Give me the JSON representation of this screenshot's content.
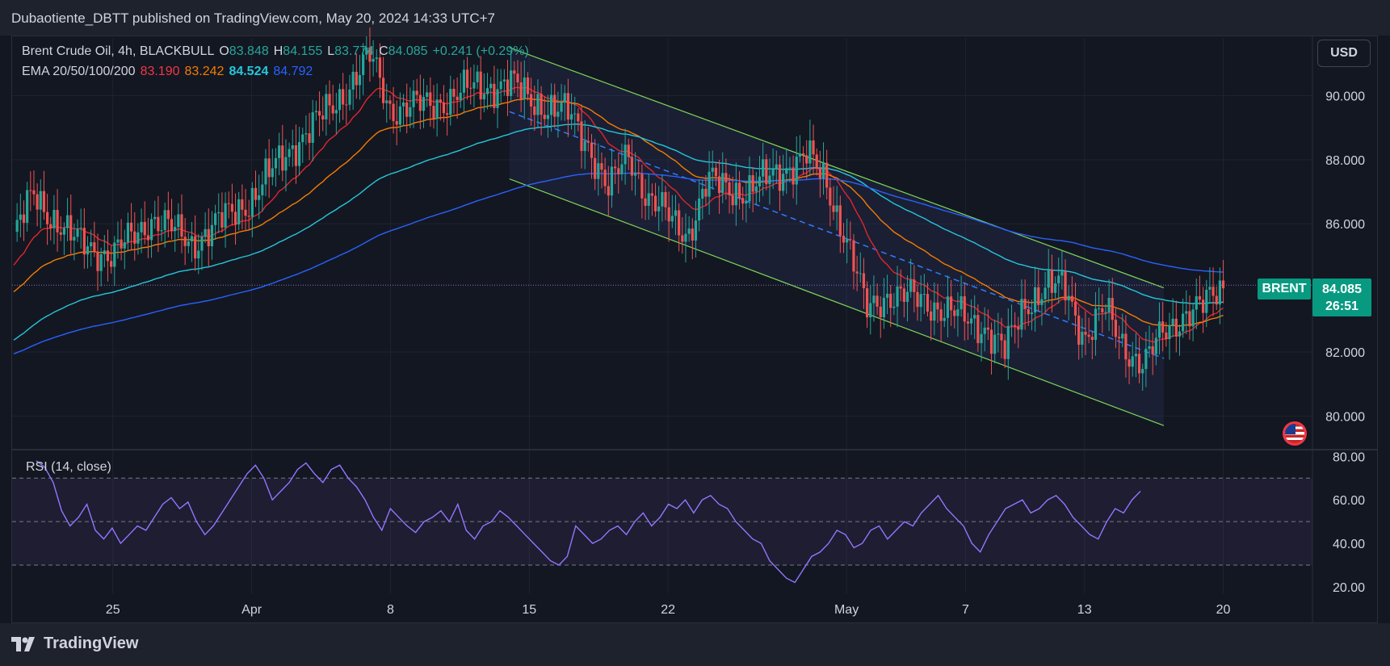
{
  "header": {
    "published_by": "Dubaotiente_DBTT published on TradingView.com, May 20, 2024 14:33 UTC+7"
  },
  "legend": {
    "symbol": "Brent Crude Oil, 4h, BLACKBULL",
    "open_label": "O",
    "open": "83.848",
    "high_label": "H",
    "high": "84.155",
    "low_label": "L",
    "low": "83.774",
    "close_label": "C",
    "close": "84.085",
    "change": "+0.241 (+0.29%)",
    "ema_label": "EMA 20/50/100/200",
    "ema_values": [
      "83.190",
      "83.242",
      "84.524",
      "84.792"
    ]
  },
  "currency_button": "USD",
  "last_price": {
    "symbol": "BRENT",
    "price": "84.085",
    "countdown": "26:51"
  },
  "rsi_label": "RSI (14, close)",
  "footer": {
    "brand": "TradingView"
  },
  "colors": {
    "up": "#26a69a",
    "down": "#ef5350",
    "ema20": "#e0262b",
    "ema50": "#f57c00",
    "ema100": "#26c6da",
    "ema200": "#2962ff",
    "channel": "#7ed957",
    "midline": "#2f7bff",
    "rsi": "#9575ff",
    "last": "#089981"
  },
  "chart_data": [
    {
      "type": "candlestick",
      "title": "Brent Crude Oil, 4h, BLACKBULL",
      "x_ticks": [
        "25",
        "Apr",
        "8",
        "15",
        "22",
        "May",
        "7",
        "13",
        "20"
      ],
      "y_ticks": [
        "90.000",
        "88.000",
        "86.000",
        "82.000",
        "80.000"
      ],
      "ylim": [
        79.0,
        91.8
      ],
      "key_points": [
        {
          "t": "Mar 20",
          "close": 85.6
        },
        {
          "t": "Mar 21",
          "close": 86.9
        },
        {
          "t": "Mar 23",
          "close": 85.5
        },
        {
          "t": "Mar 25",
          "close": 85.0
        },
        {
          "t": "Mar 27",
          "close": 86.2
        },
        {
          "t": "Mar 29",
          "close": 85.4
        },
        {
          "t": "Apr 1",
          "close": 86.8
        },
        {
          "t": "Apr 3",
          "close": 88.4
        },
        {
          "t": "Apr 5",
          "close": 89.6
        },
        {
          "t": "Apr 7",
          "close": 91.2
        },
        {
          "t": "Apr 8",
          "close": 89.6
        },
        {
          "t": "Apr 10",
          "close": 89.7
        },
        {
          "t": "Apr 12",
          "close": 90.2
        },
        {
          "t": "Apr 14",
          "close": 90.4
        },
        {
          "t": "Apr 15",
          "close": 89.9
        },
        {
          "t": "Apr 17",
          "close": 89.4
        },
        {
          "t": "Apr 18",
          "close": 88.5
        },
        {
          "t": "Apr 19",
          "close": 87.0
        },
        {
          "t": "Apr 20",
          "close": 88.2
        },
        {
          "t": "Apr 21",
          "close": 86.8
        },
        {
          "t": "Apr 22",
          "close": 86.2
        },
        {
          "t": "Apr 23",
          "close": 85.7
        },
        {
          "t": "Apr 24",
          "close": 87.3
        },
        {
          "t": "Apr 26",
          "close": 87.0
        },
        {
          "t": "Apr 28",
          "close": 87.8
        },
        {
          "t": "Apr 29",
          "close": 88.1
        },
        {
          "t": "Apr 30",
          "close": 87.3
        },
        {
          "t": "May 1",
          "close": 85.5
        },
        {
          "t": "May 2",
          "close": 83.3
        },
        {
          "t": "May 3",
          "close": 83.8
        },
        {
          "t": "May 5",
          "close": 83.6
        },
        {
          "t": "May 7",
          "close": 83.0
        },
        {
          "t": "May 8",
          "close": 82.8
        },
        {
          "t": "May 9",
          "close": 82.0
        },
        {
          "t": "May 10",
          "close": 83.5
        },
        {
          "t": "May 11",
          "close": 84.0
        },
        {
          "t": "May 12",
          "close": 84.0
        },
        {
          "t": "May 13",
          "close": 82.5
        },
        {
          "t": "May 14",
          "close": 83.3
        },
        {
          "t": "May 15",
          "close": 82.2
        },
        {
          "t": "May 16",
          "close": 81.6
        },
        {
          "t": "May 17",
          "close": 82.6
        },
        {
          "t": "May 18",
          "close": 83.2
        },
        {
          "t": "May 19",
          "close": 83.4
        },
        {
          "t": "May 20",
          "close": 84.085
        }
      ],
      "ema_latest": {
        "ema20": 83.19,
        "ema50": 83.242,
        "ema100": 84.524,
        "ema200": 84.792
      },
      "last_price": 84.085,
      "channel": {
        "upper": [
          {
            "t": "Apr 14",
            "y": 91.5
          },
          {
            "t": "May 17",
            "y": 84.0
          }
        ],
        "lower": [
          {
            "t": "Apr 14",
            "y": 87.4
          },
          {
            "t": "May 17",
            "y": 79.7
          }
        ],
        "mid": [
          {
            "t": "Apr 14",
            "y": 89.5
          },
          {
            "t": "May 17",
            "y": 81.8
          }
        ]
      }
    },
    {
      "type": "line",
      "title": "RSI (14, close)",
      "y_ticks": [
        "80.00",
        "60.00",
        "40.00",
        "20.00"
      ],
      "ylim": [
        17,
        82
      ],
      "bands": [
        70,
        50,
        30
      ],
      "values": [
        78,
        75,
        68,
        55,
        48,
        52,
        58,
        46,
        42,
        47,
        40,
        44,
        48,
        46,
        52,
        58,
        61,
        56,
        59,
        50,
        44,
        48,
        54,
        60,
        66,
        72,
        76,
        70,
        60,
        64,
        68,
        74,
        77,
        72,
        68,
        74,
        76,
        70,
        66,
        60,
        52,
        46,
        56,
        52,
        48,
        45,
        50,
        52,
        55,
        50,
        58,
        46,
        42,
        48,
        50,
        55,
        52,
        48,
        44,
        40,
        36,
        32,
        30,
        34,
        48,
        44,
        40,
        42,
        46,
        48,
        44,
        50,
        54,
        48,
        52,
        58,
        56,
        60,
        54,
        60,
        62,
        58,
        56,
        50,
        46,
        42,
        40,
        32,
        28,
        24,
        22,
        28,
        34,
        36,
        40,
        46,
        44,
        38,
        40,
        46,
        48,
        42,
        46,
        50,
        48,
        54,
        58,
        62,
        56,
        52,
        48,
        40,
        36,
        44,
        50,
        56,
        58,
        60,
        54,
        56,
        60,
        62,
        58,
        52,
        48,
        44,
        42,
        50,
        56,
        54,
        60,
        64
      ]
    }
  ]
}
